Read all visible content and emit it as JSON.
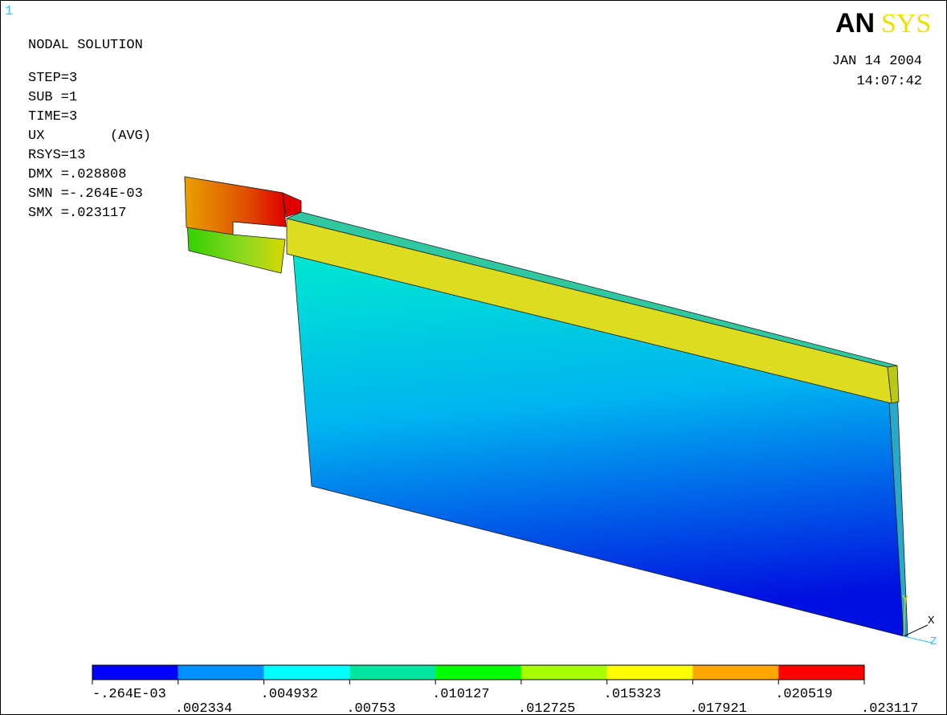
{
  "window_number": "1",
  "logo": {
    "left": "AN",
    "right": "SYS"
  },
  "info": [
    "NODAL SOLUTION",
    "STEP=3",
    "SUB =1",
    "TIME=3",
    "UX        (AVG)",
    "RSYS=13",
    "DMX =.028808",
    "SMN =-.264E-03",
    "SMX =.023117"
  ],
  "date": "JAN 14 2004",
  "time": "14:07:42",
  "triad": {
    "y": "Y",
    "x": "X",
    "z": "Z"
  },
  "legend": {
    "colors": [
      "#0000ff",
      "#0090ff",
      "#00ffff",
      "#00e6a0",
      "#00ff00",
      "#a8ff00",
      "#ffff00",
      "#ffa500",
      "#ff0000"
    ],
    "labels": [
      "-.264E-03",
      ".002334",
      ".004932",
      ".00753",
      ".010127",
      ".012725",
      ".015323",
      ".017921",
      ".020519",
      ".023117"
    ]
  }
}
